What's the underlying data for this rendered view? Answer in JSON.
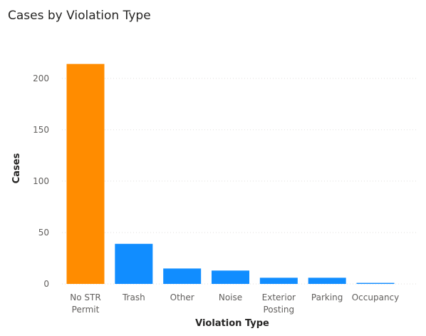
{
  "chart_data": {
    "type": "bar",
    "title": "Cases by Violation Type",
    "xlabel": "Violation Type",
    "ylabel": "Cases",
    "ylim": [
      0,
      220
    ],
    "yticks": [
      0,
      50,
      100,
      150,
      200
    ],
    "categories": [
      [
        "No STR",
        "Permit"
      ],
      [
        "Trash"
      ],
      [
        "Other"
      ],
      [
        "Noise"
      ],
      [
        "Exterior",
        "Posting"
      ],
      [
        "Parking"
      ],
      [
        "Occupancy"
      ]
    ],
    "values": [
      214,
      39,
      15,
      13,
      6,
      6,
      1
    ],
    "colors": [
      "#ff8c00",
      "#118dff",
      "#118dff",
      "#118dff",
      "#118dff",
      "#118dff",
      "#118dff"
    ],
    "grid": true,
    "legend": "none"
  }
}
